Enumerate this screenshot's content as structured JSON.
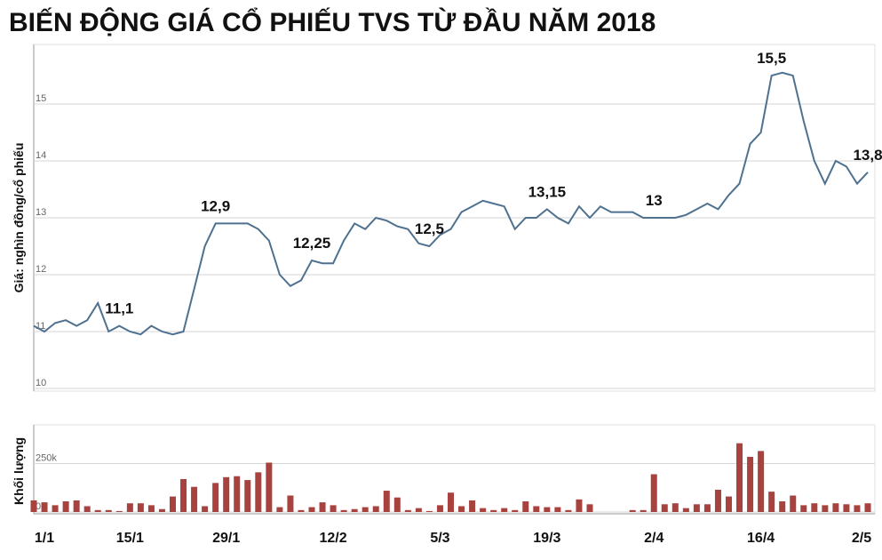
{
  "chart_data": [
    {
      "type": "line",
      "title": "BIẾN ĐỘNG GIÁ CỔ PHIẾU TVS TỪ ĐẦU NĂM 2018",
      "y_label": "Giá: nghìn đồng/cổ phiếu",
      "color": "#4f7190",
      "ylim": [
        10,
        16
      ],
      "yticks": [
        10,
        11,
        12,
        13,
        14,
        15
      ],
      "grid": true,
      "values": [
        11.1,
        11.0,
        11.15,
        11.2,
        11.1,
        11.2,
        11.5,
        11.0,
        11.1,
        11.0,
        10.95,
        11.1,
        11.0,
        10.95,
        11.0,
        11.75,
        12.5,
        12.9,
        12.9,
        12.9,
        12.9,
        12.8,
        12.6,
        12.0,
        11.8,
        11.9,
        12.25,
        12.2,
        12.2,
        12.6,
        12.9,
        12.8,
        13.0,
        12.95,
        12.85,
        12.8,
        12.55,
        12.5,
        12.7,
        12.8,
        13.1,
        13.2,
        13.3,
        13.25,
        13.2,
        12.8,
        13.0,
        13.0,
        13.15,
        13.0,
        12.9,
        13.2,
        13.0,
        13.2,
        13.1,
        13.1,
        13.1,
        13.0,
        13.0,
        13.0,
        13.0,
        13.05,
        13.15,
        13.25,
        13.15,
        13.4,
        13.6,
        14.3,
        14.5,
        15.5,
        15.55,
        15.5,
        14.7,
        14.0,
        13.6,
        14.0,
        13.9,
        13.6,
        13.8
      ],
      "value_labels": [
        null,
        null,
        null,
        null,
        null,
        null,
        null,
        null,
        "11,1",
        null,
        null,
        null,
        null,
        null,
        null,
        null,
        null,
        "12,9",
        null,
        null,
        null,
        null,
        null,
        null,
        null,
        null,
        "12,25",
        null,
        null,
        null,
        null,
        null,
        null,
        null,
        null,
        null,
        null,
        "12,5",
        null,
        null,
        null,
        null,
        null,
        null,
        null,
        null,
        null,
        null,
        "13,15",
        null,
        null,
        null,
        null,
        null,
        null,
        null,
        null,
        null,
        "13",
        null,
        null,
        null,
        null,
        null,
        null,
        null,
        null,
        null,
        null,
        "15,5",
        null,
        null,
        null,
        null,
        null,
        null,
        null,
        null,
        "13,8"
      ]
    },
    {
      "type": "bar",
      "y_label": "Khối lượng",
      "color": "#a8423f",
      "ylim": [
        0,
        450000
      ],
      "yticks": [
        {
          "value": 0,
          "label": "0k"
        },
        {
          "value": 250000,
          "label": "250k"
        }
      ],
      "categories": [
        null,
        "1/1",
        null,
        null,
        null,
        null,
        null,
        null,
        null,
        "15/1",
        null,
        null,
        null,
        null,
        null,
        null,
        null,
        null,
        "29/1",
        null,
        null,
        null,
        null,
        null,
        null,
        null,
        null,
        null,
        "12/2",
        null,
        null,
        null,
        null,
        null,
        null,
        null,
        null,
        null,
        "5/3",
        null,
        null,
        null,
        null,
        null,
        null,
        null,
        null,
        null,
        "19/3",
        null,
        null,
        null,
        null,
        null,
        null,
        null,
        null,
        null,
        "2/4",
        null,
        null,
        null,
        null,
        null,
        null,
        null,
        null,
        null,
        "16/4",
        null,
        null,
        null,
        null,
        null,
        null,
        null,
        null,
        null,
        "2/5"
      ],
      "values": [
        60000,
        50000,
        35000,
        55000,
        60000,
        30000,
        10000,
        10000,
        5000,
        45000,
        45000,
        35000,
        15000,
        80000,
        170000,
        130000,
        30000,
        150000,
        180000,
        185000,
        165000,
        205000,
        255000,
        25000,
        85000,
        10000,
        25000,
        50000,
        35000,
        10000,
        15000,
        25000,
        30000,
        110000,
        75000,
        10000,
        20000,
        5000,
        35000,
        100000,
        30000,
        60000,
        20000,
        10000,
        20000,
        10000,
        55000,
        30000,
        25000,
        25000,
        10000,
        65000,
        40000,
        0,
        0,
        0,
        10000,
        10000,
        195000,
        40000,
        45000,
        20000,
        40000,
        40000,
        115000,
        80000,
        355000,
        285000,
        315000,
        105000,
        55000,
        85000,
        35000,
        45000,
        35000,
        45000,
        40000,
        35000,
        45000
      ]
    }
  ]
}
